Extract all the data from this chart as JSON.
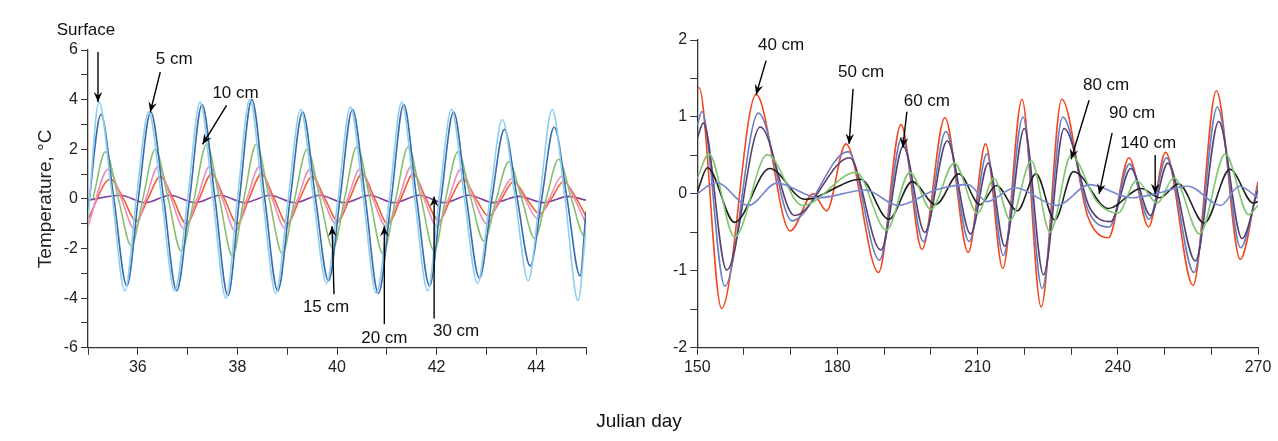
{
  "chart_data": [
    {
      "type": "line",
      "ylabel": "Temperature, °C",
      "xlabel": "Julian day",
      "xlim": [
        35,
        45
      ],
      "xticks": [
        {
          "value": 35,
          "label": null
        },
        36,
        {
          "value": 37,
          "label": null
        },
        38,
        {
          "value": 39,
          "label": null
        },
        40,
        {
          "value": 41,
          "label": null
        },
        42,
        {
          "value": 43,
          "label": null
        },
        44,
        {
          "value": 45,
          "label": null
        }
      ],
      "ylim": [
        -6,
        6
      ],
      "yticks": [
        -6,
        {
          "value": -5,
          "label": null
        },
        -4,
        {
          "value": -3,
          "label": null
        },
        -2,
        {
          "value": -1,
          "label": null
        },
        0,
        {
          "value": 1,
          "label": null
        },
        2,
        {
          "value": 3,
          "label": null
        },
        4,
        {
          "value": 5,
          "label": null
        },
        6
      ],
      "series": [
        {
          "color": "#8ecfef",
          "x": [
            35,
            35.22,
            35.48,
            35.74,
            35.97,
            36.22,
            36.48,
            36.74,
            37.0,
            37.25,
            37.51,
            37.77,
            38.0,
            38.25,
            38.51,
            38.77,
            39.02,
            39.27,
            39.53,
            39.79,
            40.02,
            40.27,
            40.53,
            40.79,
            41.05,
            41.3,
            41.56,
            41.82,
            42.05,
            42.3,
            42.56,
            42.82,
            43.07,
            43.32,
            43.58,
            43.84,
            44.07,
            44.32,
            44.58,
            44.84,
            45
          ],
          "values": [
            -0.8,
            3.9,
            0.2,
            -3.7,
            0,
            3.5,
            0,
            -3.7,
            0,
            3.9,
            0,
            -4.0,
            0,
            4.0,
            0,
            -3.8,
            0,
            3.6,
            0,
            -3.4,
            0,
            3.7,
            0,
            -3.8,
            0,
            3.9,
            0,
            -3.7,
            0,
            3.6,
            0,
            -3.4,
            0,
            3.2,
            0,
            -3.3,
            0,
            3.6,
            0,
            -4.1,
            -1.2
          ]
        },
        {
          "color": "#3a6aa8",
          "x": [
            35,
            35.26,
            35.52,
            35.78,
            36.01,
            36.26,
            36.52,
            36.78,
            37.04,
            37.29,
            37.55,
            37.81,
            38.04,
            38.29,
            38.55,
            38.81,
            39.06,
            39.31,
            39.57,
            39.83,
            40.06,
            40.31,
            40.57,
            40.83,
            41.09,
            41.34,
            41.6,
            41.86,
            42.09,
            42.34,
            42.6,
            42.86,
            43.11,
            43.36,
            43.62,
            43.88,
            44.11,
            44.36,
            44.62,
            44.88,
            45
          ],
          "values": [
            -0.5,
            3.4,
            0,
            -3.5,
            0,
            3.5,
            0,
            -3.7,
            0,
            3.8,
            0,
            -3.9,
            0,
            4.0,
            0,
            -3.7,
            0,
            3.5,
            0,
            -3.3,
            0,
            3.6,
            0,
            -3.8,
            0,
            3.8,
            0,
            -3.5,
            0,
            3.5,
            0,
            -3.2,
            0,
            2.8,
            0,
            -2.7,
            0,
            2.9,
            0,
            -3.1,
            -0.5
          ]
        },
        {
          "color": "#88c070",
          "x": [
            35.1,
            35.35,
            35.61,
            35.87,
            36.1,
            36.35,
            36.61,
            36.87,
            37.13,
            37.38,
            37.64,
            37.9,
            38.13,
            38.38,
            38.64,
            38.9,
            39.15,
            39.4,
            39.66,
            39.92,
            40.15,
            40.4,
            40.66,
            40.92,
            41.18,
            41.43,
            41.69,
            41.95,
            42.18,
            42.43,
            42.69,
            42.95,
            43.2,
            43.45,
            43.71,
            43.97,
            44.2,
            44.45,
            44.71,
            44.97,
            45
          ],
          "values": [
            0,
            1.9,
            0,
            -1.9,
            0,
            2.0,
            0,
            -2.1,
            0,
            2.2,
            0,
            -2.3,
            0,
            2.2,
            0,
            -2.2,
            0,
            2.0,
            0,
            -2.0,
            0,
            2.1,
            0,
            -2.2,
            0,
            2.1,
            0,
            -2.1,
            0,
            1.9,
            0,
            -1.7,
            0,
            1.5,
            0,
            -1.6,
            0,
            1.6,
            0,
            -1.5,
            -1.4
          ]
        },
        {
          "color": "#e890c0",
          "x": [
            35,
            35.41,
            35.67,
            35.93,
            36.16,
            36.41,
            36.67,
            36.93,
            37.19,
            37.44,
            37.7,
            37.96,
            38.19,
            38.44,
            38.7,
            38.96,
            39.21,
            39.46,
            39.72,
            39.98,
            40.21,
            40.46,
            40.72,
            40.98,
            41.24,
            41.49,
            41.75,
            42.01,
            42.24,
            42.49,
            42.75,
            43.01,
            43.26,
            43.51,
            43.77,
            44.03,
            44.26,
            44.51,
            44.77,
            45
          ],
          "values": [
            -1.1,
            1.2,
            0,
            -1.2,
            0,
            1.3,
            0,
            -1.2,
            0,
            1.3,
            0,
            -1.3,
            0,
            1.3,
            0,
            -1.2,
            0,
            1.2,
            0,
            -1.0,
            0,
            1.2,
            0,
            -1.1,
            0,
            1.3,
            0,
            -1.1,
            0,
            1.2,
            0,
            -1.0,
            0,
            0.8,
            0,
            -0.8,
            0,
            0.9,
            0,
            -1.0
          ]
        },
        {
          "color": "#f06030",
          "x": [
            35,
            35.45,
            35.71,
            35.97,
            36.2,
            36.45,
            36.71,
            36.97,
            37.23,
            37.48,
            37.74,
            38.0,
            38.23,
            38.48,
            38.74,
            39.0,
            39.25,
            39.5,
            39.76,
            40.02,
            40.25,
            40.5,
            40.76,
            41.02,
            41.28,
            41.53,
            41.79,
            42.05,
            42.28,
            42.53,
            42.79,
            43.05,
            43.3,
            43.55,
            43.81,
            44.07,
            44.3,
            44.55,
            44.81,
            45
          ],
          "values": [
            -0.8,
            0.8,
            0,
            -0.9,
            0,
            0.9,
            0,
            -1.0,
            0,
            1.0,
            0,
            -1.0,
            0,
            1.0,
            0,
            -1.0,
            0,
            0.9,
            0,
            -0.9,
            0,
            1.0,
            0,
            -1.0,
            0,
            1.0,
            0,
            -0.9,
            0,
            0.8,
            0,
            -0.7,
            0,
            0.7,
            0,
            -0.6,
            0,
            0.7,
            0,
            -0.7
          ]
        },
        {
          "color": "#8040a0",
          "x": [
            35,
            35.65,
            36.15,
            36.65,
            37.15,
            37.65,
            38.15,
            38.65,
            39.15,
            39.65,
            40.15,
            40.65,
            41.15,
            41.65,
            42.15,
            42.65,
            43.15,
            43.65,
            44.15,
            44.65,
            45
          ],
          "values": [
            -0.05,
            0.15,
            -0.15,
            0.15,
            -0.15,
            0.15,
            -0.15,
            0.15,
            -0.15,
            0.15,
            -0.15,
            0.15,
            -0.15,
            0.15,
            -0.15,
            0.15,
            -0.15,
            0.1,
            -0.15,
            0.1,
            -0.05
          ]
        }
      ],
      "annotations": [
        {
          "text": "Surface",
          "x": 35.2,
          "y": 3.9
        },
        {
          "text": "5 cm",
          "x": 36.25,
          "y": 3.5
        },
        {
          "text": "10 cm",
          "x": 37.3,
          "y": 2.2
        },
        {
          "text": "15 cm",
          "x": 39.9,
          "y": -1.1
        },
        {
          "text": "20 cm",
          "x": 40.95,
          "y": -1.1
        },
        {
          "text": "30 cm",
          "x": 41.95,
          "y": 0.1
        }
      ]
    },
    {
      "type": "line",
      "xlim": [
        150,
        270
      ],
      "xticks": [
        150,
        {
          "value": 160,
          "label": null
        },
        {
          "value": 170,
          "label": null
        },
        180,
        {
          "value": 190,
          "label": null
        },
        {
          "value": 200,
          "label": null
        },
        210,
        {
          "value": 220,
          "label": null
        },
        {
          "value": 230,
          "label": null
        },
        240,
        {
          "value": 250,
          "label": null
        },
        {
          "value": 260,
          "label": null
        },
        270
      ],
      "ylim": [
        -2,
        2
      ],
      "yticks": [
        -2,
        {
          "value": -1.5,
          "label": null
        },
        -1,
        {
          "value": -0.5,
          "label": null
        },
        0,
        {
          "value": 0.5,
          "label": null
        },
        1,
        {
          "value": 1.5,
          "label": null
        },
        2
      ],
      "series": [
        {
          "color": "#7a88d0",
          "x": [
            150,
            154,
            161,
            167,
            176,
            186,
            193,
            201,
            208,
            212,
            218,
            227,
            234,
            243,
            248,
            255,
            262,
            266,
            270
          ],
          "values": [
            0.0,
            0.15,
            -0.15,
            0.14,
            -0.05,
            0.05,
            -0.15,
            0.05,
            0.12,
            -0.1,
            0.08,
            -0.15,
            0.12,
            -0.05,
            0.0,
            0.1,
            -0.15,
            0.1,
            -0.05
          ]
        },
        {
          "color": "#80c870",
          "x": [
            150,
            152.5,
            158,
            165,
            172.5,
            184,
            190.5,
            195.5,
            200,
            205,
            210,
            213.5,
            217,
            221.5,
            225.5,
            230,
            235.5,
            240,
            244,
            248.5,
            252,
            257.5,
            263,
            268,
            270
          ],
          "values": [
            0.2,
            0.52,
            -0.56,
            0.51,
            -0.15,
            0.28,
            -0.47,
            0.28,
            -0.2,
            0.4,
            -0.25,
            0.2,
            -0.34,
            0.43,
            -0.5,
            0.5,
            -0.1,
            -0.25,
            0.17,
            -0.12,
            0.21,
            -0.52,
            0.52,
            -0.27,
            -0.15
          ]
        },
        {
          "color": "#202020",
          "x": [
            150,
            152.2,
            158,
            165.5,
            173,
            185,
            191,
            196,
            201,
            206,
            210.5,
            214,
            218.5,
            222.5,
            226.5,
            230.5,
            238,
            245,
            249,
            253,
            258.5,
            264,
            269,
            270
          ],
          "values": [
            0.02,
            0.34,
            -0.37,
            0.33,
            -0.07,
            0.19,
            -0.33,
            0.16,
            -0.14,
            0.26,
            -0.14,
            0.11,
            -0.22,
            0.26,
            -0.34,
            0.29,
            -0.19,
            0.07,
            -0.05,
            0.13,
            -0.38,
            0.32,
            -0.12,
            -0.1
          ]
        },
        {
          "color": "#5a4070",
          "x": [
            150,
            151.3,
            156.3,
            163.5,
            170.8,
            182.6,
            189.3,
            194.1,
            198.7,
            203.5,
            208.5,
            212.3,
            215.8,
            220,
            224.1,
            228.5,
            234,
            238.5,
            242.8,
            247,
            250.7,
            256.6,
            261.6,
            266.6,
            270
          ],
          "values": [
            0.72,
            0.92,
            -0.99,
            0.87,
            -0.28,
            0.47,
            -0.73,
            0.62,
            -0.5,
            0.69,
            -0.52,
            0.4,
            -0.68,
            0.85,
            -1.05,
            0.85,
            -0.18,
            -0.36,
            0.33,
            -0.28,
            0.4,
            -0.87,
            0.94,
            -0.58,
            0.05
          ]
        },
        {
          "color": "#6a7cc0",
          "x": [
            150,
            151,
            155.9,
            163.1,
            170.3,
            182.3,
            189,
            193.8,
            198.4,
            203.2,
            208.2,
            212,
            215.5,
            219.7,
            223.8,
            228.2,
            233.7,
            238.2,
            242.5,
            246.7,
            250.4,
            256.3,
            261.3,
            266.3,
            270
          ],
          "values": [
            0.89,
            1.07,
            -1.2,
            1.05,
            -0.35,
            0.55,
            -0.86,
            0.73,
            -0.62,
            0.81,
            -0.62,
            0.52,
            -0.8,
            1.0,
            -1.23,
            1.0,
            -0.22,
            -0.43,
            0.39,
            -0.33,
            0.47,
            -1.02,
            1.13,
            -0.7,
            0.1
          ]
        },
        {
          "color": "#f04820",
          "x": [
            150,
            150.4,
            155.2,
            162.6,
            169.9,
            174.8,
            177.7,
            181.8,
            188.8,
            193.6,
            198.1,
            203,
            208,
            211.7,
            215.4,
            219.5,
            223.6,
            228,
            233.5,
            238,
            242.4,
            246.6,
            250.2,
            256.1,
            261.1,
            266.2,
            270
          ],
          "values": [
            1.37,
            1.38,
            -1.49,
            1.29,
            -0.48,
            0.0,
            -0.22,
            0.65,
            -1.02,
            0.9,
            -0.72,
            0.99,
            -0.76,
            0.65,
            -0.97,
            1.23,
            -1.47,
            1.23,
            -0.28,
            -0.57,
            0.47,
            -0.43,
            0.54,
            -1.19,
            1.34,
            -0.85,
            0.16
          ]
        }
      ],
      "annotations": [
        {
          "text": "40 cm",
          "x": 162.6,
          "y": 1.29
        },
        {
          "text": "50 cm",
          "x": 182.5,
          "y": 0.65
        },
        {
          "text": "60 cm",
          "x": 194,
          "y": 0.6
        },
        {
          "text": "80 cm",
          "x": 230,
          "y": 0.45
        },
        {
          "text": "90 cm",
          "x": 236,
          "y": 0.0
        },
        {
          "text": "140 cm",
          "x": 248,
          "y": 0.0
        }
      ]
    }
  ]
}
